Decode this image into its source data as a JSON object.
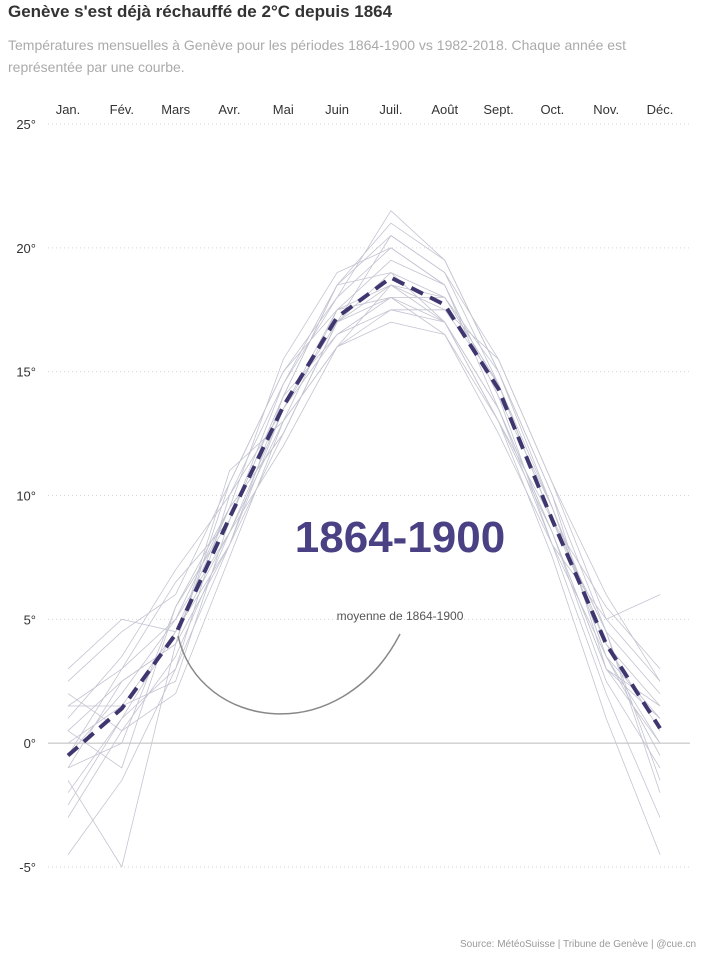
{
  "header": {
    "title": "Genève s'est déjà réchauffé de 2°C depuis 1864",
    "subtitle": "Températures mensuelles à Genève pour les périodes 1864-1900 vs 1982-2018. Chaque année est représentée par une courbe."
  },
  "chart_data": {
    "type": "line",
    "categories": [
      "Jan.",
      "Fév.",
      "Mars",
      "Avr.",
      "Mai",
      "Juin",
      "Juil.",
      "Août",
      "Sept.",
      "Oct.",
      "Nov.",
      "Déc."
    ],
    "y_ticks": [
      25,
      20,
      15,
      10,
      5,
      0,
      -5
    ],
    "y_tick_labels": [
      "25°",
      "20°",
      "15°",
      "10°",
      "5°",
      "0°",
      "-5°"
    ],
    "ylim": [
      -5,
      25
    ],
    "grid": true,
    "mean_series": [
      -0.5,
      1.4,
      4.4,
      9.1,
      13.6,
      17.2,
      18.8,
      17.7,
      14.3,
      9.0,
      4.0,
      0.6
    ],
    "annual_series": [
      [
        -2.0,
        1.0,
        4.5,
        9.5,
        12.5,
        17.0,
        19.0,
        18.0,
        14.5,
        9.0,
        4.5,
        -1.5
      ],
      [
        1.5,
        3.0,
        5.0,
        8.5,
        13.0,
        16.0,
        17.5,
        17.0,
        13.5,
        8.5,
        3.0,
        1.0
      ],
      [
        -4.5,
        -1.5,
        3.0,
        10.0,
        14.5,
        18.5,
        20.5,
        19.0,
        15.5,
        10.5,
        5.0,
        2.5
      ],
      [
        0.5,
        2.5,
        4.0,
        8.0,
        13.5,
        17.5,
        19.5,
        18.5,
        14.0,
        8.0,
        3.5,
        -0.5
      ],
      [
        -1.0,
        0.0,
        5.5,
        9.0,
        14.0,
        16.5,
        18.0,
        18.0,
        15.0,
        9.5,
        4.0,
        1.5
      ],
      [
        2.5,
        4.5,
        6.0,
        10.5,
        15.0,
        18.0,
        20.0,
        18.5,
        13.5,
        8.0,
        2.0,
        -3.0
      ],
      [
        -3.0,
        0.5,
        3.5,
        8.5,
        12.0,
        16.0,
        17.0,
        16.5,
        13.0,
        9.0,
        5.5,
        3.0
      ],
      [
        0.0,
        1.5,
        2.5,
        9.0,
        14.5,
        18.0,
        21.5,
        19.5,
        15.0,
        10.0,
        3.0,
        0.0
      ],
      [
        -1.5,
        -5.0,
        4.0,
        11.0,
        13.0,
        17.5,
        18.5,
        17.5,
        14.5,
        9.0,
        4.5,
        2.0
      ],
      [
        3.0,
        5.0,
        4.5,
        8.0,
        12.5,
        17.0,
        18.5,
        17.0,
        13.0,
        7.5,
        1.0,
        -4.5
      ],
      [
        -0.5,
        2.0,
        5.0,
        9.5,
        15.5,
        19.0,
        20.0,
        18.5,
        14.0,
        9.5,
        3.5,
        1.0
      ],
      [
        1.0,
        3.5,
        7.0,
        10.0,
        13.5,
        16.5,
        17.5,
        17.5,
        15.5,
        10.5,
        6.0,
        2.5
      ],
      [
        -2.5,
        1.0,
        3.0,
        8.0,
        14.0,
        18.5,
        19.0,
        17.0,
        13.5,
        8.5,
        2.5,
        -1.0
      ],
      [
        0.5,
        -1.0,
        5.5,
        9.5,
        12.5,
        17.0,
        20.5,
        19.0,
        14.5,
        9.0,
        4.0,
        0.5
      ],
      [
        -1.0,
        2.5,
        4.0,
        10.5,
        15.0,
        17.5,
        18.0,
        16.5,
        12.5,
        8.0,
        5.0,
        6.0
      ],
      [
        2.0,
        0.5,
        2.0,
        7.5,
        13.0,
        16.0,
        18.5,
        18.0,
        14.5,
        9.5,
        3.5,
        0.0
      ],
      [
        -0.5,
        3.0,
        6.5,
        9.0,
        14.0,
        18.5,
        21.0,
        19.5,
        15.0,
        10.0,
        4.5,
        -2.0
      ],
      [
        1.5,
        1.5,
        4.5,
        8.5,
        13.5,
        17.0,
        18.0,
        17.0,
        13.0,
        8.5,
        3.0,
        1.5
      ]
    ]
  },
  "annotations": {
    "period_label": "1864-1900",
    "mean_label": "moyenne de 1864-1900"
  },
  "source": "Source: MétéoSuisse | Tribune de Genève | @cue.cn",
  "colors": {
    "mean_line": "#3f3670",
    "year_lines": "#c4c4d2",
    "grid": "#d6d6d6",
    "period_label": "#4a4185"
  }
}
